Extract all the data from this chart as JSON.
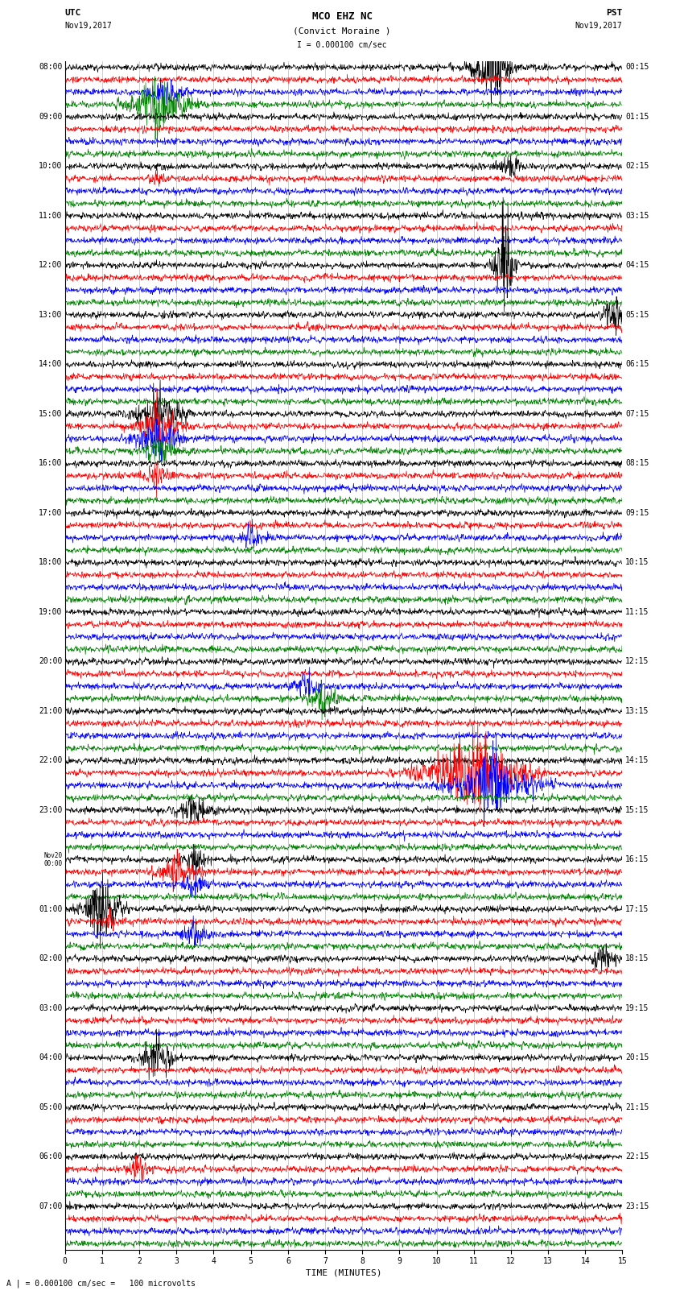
{
  "title_line1": "MCO EHZ NC",
  "title_line2": "(Convict Moraine )",
  "scale_label": "I = 0.000100 cm/sec",
  "left_label_top": "UTC",
  "left_label_date": "Nov19,2017",
  "right_label_top": "PST",
  "right_label_date": "Nov19,2017",
  "bottom_label": "TIME (MINUTES)",
  "bottom_note": "A | = 0.000100 cm/sec =   100 microvolts",
  "fig_width": 8.5,
  "fig_height": 16.13,
  "dpi": 100,
  "colors_cycle": [
    "black",
    "red",
    "blue",
    "green"
  ],
  "n_rows": 96,
  "background_color": "white",
  "grid_color": "#aaaaaa",
  "trace_linewidth": 0.5,
  "left_label_rows": [
    [
      0,
      "08:00"
    ],
    [
      4,
      "09:00"
    ],
    [
      8,
      "10:00"
    ],
    [
      12,
      "11:00"
    ],
    [
      16,
      "12:00"
    ],
    [
      20,
      "13:00"
    ],
    [
      24,
      "14:00"
    ],
    [
      28,
      "15:00"
    ],
    [
      32,
      "16:00"
    ],
    [
      36,
      "17:00"
    ],
    [
      40,
      "18:00"
    ],
    [
      44,
      "19:00"
    ],
    [
      48,
      "20:00"
    ],
    [
      52,
      "21:00"
    ],
    [
      56,
      "22:00"
    ],
    [
      60,
      "23:00"
    ],
    [
      64,
      "Nov20\n00:00"
    ],
    [
      68,
      "01:00"
    ],
    [
      72,
      "02:00"
    ],
    [
      76,
      "03:00"
    ],
    [
      80,
      "04:00"
    ],
    [
      84,
      "05:00"
    ],
    [
      88,
      "06:00"
    ],
    [
      92,
      "07:00"
    ]
  ],
  "right_label_rows": [
    [
      0,
      "00:15"
    ],
    [
      4,
      "01:15"
    ],
    [
      8,
      "02:15"
    ],
    [
      12,
      "03:15"
    ],
    [
      16,
      "04:15"
    ],
    [
      20,
      "05:15"
    ],
    [
      24,
      "06:15"
    ],
    [
      28,
      "07:15"
    ],
    [
      32,
      "08:15"
    ],
    [
      36,
      "09:15"
    ],
    [
      40,
      "10:15"
    ],
    [
      44,
      "11:15"
    ],
    [
      48,
      "12:15"
    ],
    [
      52,
      "13:15"
    ],
    [
      56,
      "14:15"
    ],
    [
      60,
      "15:15"
    ],
    [
      64,
      "16:15"
    ],
    [
      68,
      "17:15"
    ],
    [
      72,
      "18:15"
    ],
    [
      76,
      "19:15"
    ],
    [
      80,
      "20:15"
    ],
    [
      84,
      "21:15"
    ],
    [
      88,
      "22:15"
    ],
    [
      92,
      "23:15"
    ]
  ]
}
